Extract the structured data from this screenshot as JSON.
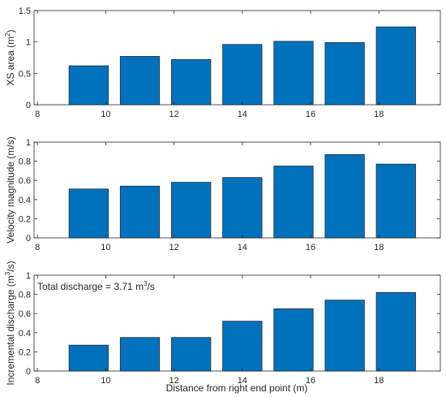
{
  "figure": {
    "xlabel": "Distance from right end point (m)"
  },
  "chart_data": [
    {
      "type": "bar",
      "ylabel": "XS area (m^2)",
      "ylabel_main": "XS area (m",
      "ylabel_sup": "2",
      "ylabel_tail": ")",
      "x": [
        9.5,
        11,
        12.5,
        14,
        15.5,
        17,
        18.5
      ],
      "values": [
        0.62,
        0.77,
        0.72,
        0.96,
        1.01,
        0.99,
        1.24
      ],
      "xlim": [
        7.9,
        19.8
      ],
      "ylim": [
        0,
        1.5
      ],
      "xticks": [
        8,
        10,
        12,
        14,
        16,
        18
      ],
      "yticks": [
        0,
        0.5,
        1,
        1.5
      ],
      "yticklabels": [
        "0",
        "0.5",
        "1",
        "1.5"
      ],
      "grid": false,
      "bar_color": "#0072BD"
    },
    {
      "type": "bar",
      "ylabel": "Velocity magnitude (m/s)",
      "x": [
        9.5,
        11,
        12.5,
        14,
        15.5,
        17,
        18.5
      ],
      "values": [
        0.51,
        0.54,
        0.58,
        0.63,
        0.75,
        0.87,
        0.77
      ],
      "xlim": [
        7.9,
        19.8
      ],
      "ylim": [
        0,
        1
      ],
      "xticks": [
        8,
        10,
        12,
        14,
        16,
        18
      ],
      "yticks": [
        0,
        0.2,
        0.4,
        0.6,
        0.8,
        1
      ],
      "yticklabels": [
        "0",
        "0.2",
        "0.4",
        "0.6",
        "0.8",
        "1"
      ],
      "grid": false,
      "bar_color": "#0072BD"
    },
    {
      "type": "bar",
      "ylabel": "Incremental discharge (m^3/s)",
      "ylabel_main": "Incremental discharge (m",
      "ylabel_sup": "3",
      "ylabel_tail": "/s)",
      "x": [
        9.5,
        11,
        12.5,
        14,
        15.5,
        17,
        18.5
      ],
      "values": [
        0.27,
        0.35,
        0.35,
        0.52,
        0.65,
        0.74,
        0.82
      ],
      "xlim": [
        7.9,
        19.8
      ],
      "ylim": [
        0,
        1
      ],
      "xticks": [
        8,
        10,
        12,
        14,
        16,
        18
      ],
      "yticks": [
        0,
        0.2,
        0.4,
        0.6,
        0.8,
        1
      ],
      "yticklabels": [
        "0",
        "0.2",
        "0.4",
        "0.6",
        "0.8",
        "1"
      ],
      "grid": false,
      "bar_color": "#0072BD",
      "annotation": "Total discharge = 3.71 m^3/s",
      "annotation_main": "Total discharge = 3.71 m",
      "annotation_sup": "3",
      "annotation_tail": "/s"
    }
  ]
}
